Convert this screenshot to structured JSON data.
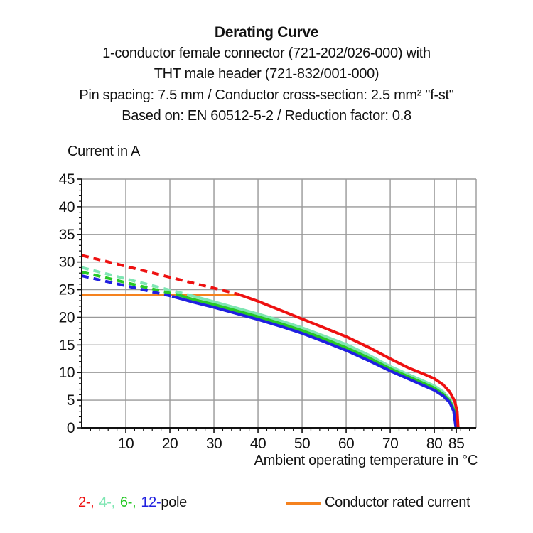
{
  "header": {
    "title": "Derating Curve",
    "subtitle_lines": [
      "1-conductor female connector (721-202/026-000) with",
      "THT male header (721-832/001-000)",
      "Pin spacing: 7.5 mm / Conductor cross-section: 2.5 mm² \"f-st\"",
      "Based on: EN 60512-5-2 / Reduction factor: 0.8"
    ]
  },
  "axes": {
    "y_title": "Current in A",
    "x_title": "Ambient operating temperature in °C"
  },
  "chart_data": {
    "type": "line",
    "title": "Derating Curve",
    "ylabel": "Current in A",
    "xlabel": "Ambient operating temperature in °C",
    "xlim": [
      0,
      89.5
    ],
    "ylim": [
      0,
      45
    ],
    "x_ticks": [
      10,
      20,
      30,
      40,
      50,
      60,
      70,
      80,
      85
    ],
    "y_ticks": [
      0,
      5,
      10,
      15,
      20,
      25,
      30,
      35,
      40,
      45
    ],
    "x_minor_step": 2,
    "y_minor_step": 1,
    "grid": true,
    "grid_color": "#999999",
    "axis_color": "#111111",
    "legend_position": "bottom",
    "series": [
      {
        "name": "conductor-rated-current",
        "label": "Conductor rated current",
        "color": "#F5821F",
        "style": "solid",
        "width": 3,
        "points": [
          [
            0,
            24
          ],
          [
            35.4,
            24
          ]
        ]
      },
      {
        "name": "4-pole-above-rated",
        "label": "4-pole (above rated, dashed)",
        "color": "#7FE6B3",
        "style": "dashed",
        "width": 4,
        "points": [
          [
            0,
            29.0
          ],
          [
            24.5,
            24.0
          ]
        ]
      },
      {
        "name": "4-pole",
        "label": "4-pole",
        "color": "#7FE6B3",
        "style": "solid",
        "width": 4,
        "points": [
          [
            24.5,
            24.0
          ],
          [
            30,
            22.8
          ],
          [
            35,
            21.7
          ],
          [
            40,
            20.6
          ],
          [
            45,
            19.4
          ],
          [
            50,
            18.1
          ],
          [
            55,
            16.6
          ],
          [
            60,
            15.1
          ],
          [
            65,
            13.2
          ],
          [
            70,
            11.1
          ],
          [
            74,
            9.7
          ],
          [
            78,
            8.3
          ],
          [
            80,
            7.6
          ],
          [
            82,
            6.5
          ],
          [
            83.5,
            5.2
          ],
          [
            84.5,
            3.5
          ],
          [
            85.05,
            0
          ]
        ]
      },
      {
        "name": "6-pole-above-rated",
        "label": "6-pole (above rated, dashed)",
        "color": "#26C826",
        "style": "dashed",
        "width": 4,
        "points": [
          [
            0,
            28.2
          ],
          [
            22.5,
            23.9
          ]
        ]
      },
      {
        "name": "6-pole",
        "label": "6-pole",
        "color": "#26C826",
        "style": "solid",
        "width": 4,
        "points": [
          [
            22.5,
            23.9
          ],
          [
            25,
            23.3
          ],
          [
            30,
            22.3
          ],
          [
            35,
            21.2
          ],
          [
            40,
            20.1
          ],
          [
            45,
            18.9
          ],
          [
            50,
            17.6
          ],
          [
            55,
            16.1
          ],
          [
            60,
            14.5
          ],
          [
            65,
            12.7
          ],
          [
            70,
            10.7
          ],
          [
            74,
            9.3
          ],
          [
            78,
            7.9
          ],
          [
            80,
            7.2
          ],
          [
            82,
            6.1
          ],
          [
            83.5,
            4.9
          ],
          [
            84.5,
            3.2
          ],
          [
            85.0,
            0
          ]
        ]
      },
      {
        "name": "12-pole-above-rated",
        "label": "12-pole (above rated, dashed)",
        "color": "#2020E0",
        "style": "dashed",
        "width": 4,
        "points": [
          [
            0,
            27.5
          ],
          [
            20.5,
            23.8
          ]
        ]
      },
      {
        "name": "12-pole",
        "label": "12-pole",
        "color": "#2020E0",
        "style": "solid",
        "width": 4,
        "points": [
          [
            20.5,
            23.8
          ],
          [
            25,
            22.8
          ],
          [
            30,
            21.8
          ],
          [
            35,
            20.7
          ],
          [
            40,
            19.6
          ],
          [
            45,
            18.4
          ],
          [
            50,
            17.1
          ],
          [
            55,
            15.6
          ],
          [
            60,
            14.0
          ],
          [
            65,
            12.2
          ],
          [
            70,
            10.3
          ],
          [
            74,
            8.9
          ],
          [
            78,
            7.5
          ],
          [
            80,
            6.8
          ],
          [
            82,
            5.8
          ],
          [
            83.5,
            4.6
          ],
          [
            84.4,
            3.0
          ],
          [
            84.9,
            0
          ]
        ]
      },
      {
        "name": "2-pole-above-rated",
        "label": "2-pole (above rated, dashed)",
        "color": "#EE1111",
        "style": "dashed",
        "width": 4,
        "points": [
          [
            0,
            31.2
          ],
          [
            35.4,
            24.2
          ]
        ]
      },
      {
        "name": "2-pole",
        "label": "2-pole",
        "color": "#EE1111",
        "style": "solid",
        "width": 4,
        "points": [
          [
            35.4,
            24.2
          ],
          [
            40,
            22.9
          ],
          [
            45,
            21.3
          ],
          [
            50,
            19.7
          ],
          [
            55,
            18.1
          ],
          [
            60,
            16.5
          ],
          [
            65,
            14.6
          ],
          [
            70,
            12.5
          ],
          [
            74,
            10.9
          ],
          [
            78,
            9.6
          ],
          [
            80,
            8.9
          ],
          [
            82,
            7.8
          ],
          [
            83.5,
            6.5
          ],
          [
            84.6,
            4.9
          ],
          [
            85.2,
            3.0
          ],
          [
            85.4,
            0
          ]
        ]
      }
    ]
  },
  "legend": {
    "poles": [
      {
        "label": "2-,",
        "color": "#EE1111"
      },
      {
        "label": "4-,",
        "color": "#7FE6B3"
      },
      {
        "label": "6-,",
        "color": "#26C826"
      },
      {
        "label": "12-",
        "color": "#2020E0"
      }
    ],
    "poles_suffix": "pole",
    "rated": {
      "label": "Conductor rated current",
      "color": "#F5821F"
    }
  }
}
